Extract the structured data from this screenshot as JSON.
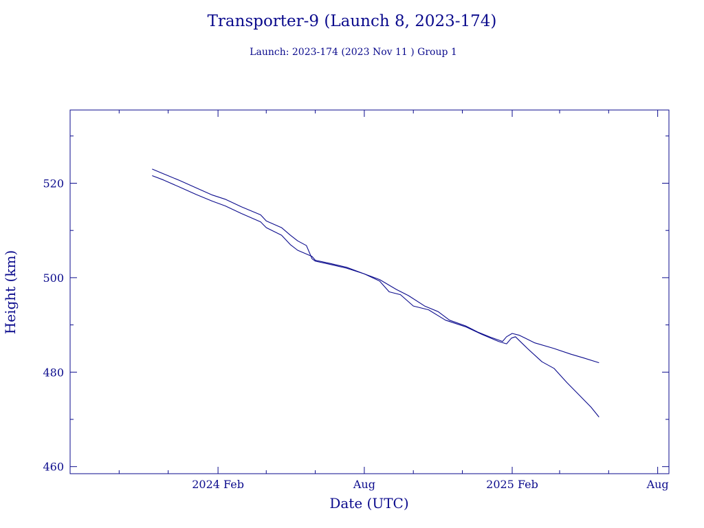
{
  "colors": {
    "foreground": "#0a0a8c",
    "background": "#ffffff"
  },
  "chart_data": {
    "type": "line",
    "title": "Transporter-9 (Launch 8, 2023-174)",
    "subtitle": "Launch: 2023-174  (2023 Nov 11 )  Group 1",
    "xlabel": "Date (UTC)",
    "ylabel": "Height (km)",
    "xlim": [
      "2023-08-01",
      "2025-08-15"
    ],
    "ylim": [
      458.5,
      535.5
    ],
    "x_ticks": [
      {
        "date": "2024-02-01",
        "label": "2024 Feb"
      },
      {
        "date": "2024-08-01",
        "label": "Aug"
      },
      {
        "date": "2025-02-01",
        "label": "2025 Feb"
      },
      {
        "date": "2025-08-01",
        "label": "Aug"
      }
    ],
    "x_minor_ticks": [
      "2023-10-01",
      "2023-12-01",
      "2024-04-01",
      "2024-06-01",
      "2024-10-01",
      "2024-12-01",
      "2025-04-01",
      "2025-06-01"
    ],
    "y_ticks": [
      460,
      480,
      500,
      520
    ],
    "y_minor_ticks": [
      470,
      490,
      510,
      530
    ],
    "grid": false,
    "series": [
      {
        "points": [
          [
            "2023-11-11",
            523.0
          ],
          [
            "2023-11-25",
            522.0
          ],
          [
            "2023-12-15",
            520.6
          ],
          [
            "2024-01-05",
            519.0
          ],
          [
            "2024-01-25",
            517.5
          ],
          [
            "2024-02-10",
            516.6
          ],
          [
            "2024-03-01",
            515.0
          ],
          [
            "2024-03-25",
            513.3
          ],
          [
            "2024-04-01",
            512.0
          ],
          [
            "2024-04-20",
            510.6
          ],
          [
            "2024-05-01",
            509.0
          ],
          [
            "2024-05-10",
            507.8
          ],
          [
            "2024-05-21",
            506.8
          ],
          [
            "2024-05-28",
            504.0
          ],
          [
            "2024-06-01",
            503.5
          ],
          [
            "2024-06-20",
            502.8
          ],
          [
            "2024-07-10",
            502.0
          ],
          [
            "2024-08-01",
            500.8
          ],
          [
            "2024-08-20",
            499.6
          ],
          [
            "2024-09-10",
            497.5
          ],
          [
            "2024-09-25",
            496.2
          ],
          [
            "2024-10-15",
            494.0
          ],
          [
            "2024-11-01",
            492.8
          ],
          [
            "2024-11-15",
            491.0
          ],
          [
            "2024-12-05",
            489.8
          ],
          [
            "2024-12-20",
            488.5
          ],
          [
            "2025-01-05",
            487.4
          ],
          [
            "2025-01-20",
            486.5
          ],
          [
            "2025-01-25",
            487.5
          ],
          [
            "2025-02-01",
            488.2
          ],
          [
            "2025-02-10",
            487.8
          ],
          [
            "2025-03-01",
            486.2
          ],
          [
            "2025-03-25",
            485.0
          ],
          [
            "2025-04-15",
            483.8
          ],
          [
            "2025-05-01",
            483.0
          ],
          [
            "2025-05-20",
            482.0
          ]
        ]
      },
      {
        "points": [
          [
            "2023-11-11",
            521.6
          ],
          [
            "2023-11-25",
            520.7
          ],
          [
            "2023-12-15",
            519.2
          ],
          [
            "2024-01-05",
            517.6
          ],
          [
            "2024-01-25",
            516.2
          ],
          [
            "2024-02-10",
            515.2
          ],
          [
            "2024-03-01",
            513.6
          ],
          [
            "2024-03-25",
            511.8
          ],
          [
            "2024-04-01",
            510.6
          ],
          [
            "2024-04-20",
            509.0
          ],
          [
            "2024-05-01",
            507.0
          ],
          [
            "2024-05-10",
            505.8
          ],
          [
            "2024-05-28",
            504.5
          ],
          [
            "2024-06-01",
            503.7
          ],
          [
            "2024-06-20",
            503.0
          ],
          [
            "2024-07-10",
            502.2
          ],
          [
            "2024-08-01",
            500.8
          ],
          [
            "2024-08-20",
            499.3
          ],
          [
            "2024-09-01",
            497.0
          ],
          [
            "2024-09-15",
            496.4
          ],
          [
            "2024-10-01",
            494.0
          ],
          [
            "2024-10-20",
            493.2
          ],
          [
            "2024-11-10",
            491.0
          ],
          [
            "2024-12-05",
            489.6
          ],
          [
            "2024-12-25",
            488.0
          ],
          [
            "2025-01-15",
            486.5
          ],
          [
            "2025-01-25",
            486.0
          ],
          [
            "2025-01-31",
            487.2
          ],
          [
            "2025-02-05",
            487.5
          ],
          [
            "2025-02-20",
            485.0
          ],
          [
            "2025-03-10",
            482.2
          ],
          [
            "2025-03-25",
            480.8
          ],
          [
            "2025-04-10",
            477.8
          ],
          [
            "2025-04-25",
            475.2
          ],
          [
            "2025-05-10",
            472.6
          ],
          [
            "2025-05-20",
            470.5
          ]
        ]
      }
    ]
  }
}
